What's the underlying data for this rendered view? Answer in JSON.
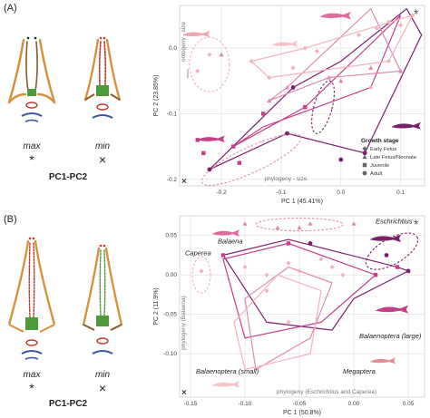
{
  "panels": [
    {
      "letter": "(A)",
      "labels": {
        "max": "max",
        "min": "min",
        "max_symbol": "*",
        "min_symbol": "×",
        "pc_pair": "PC1-PC2"
      }
    },
    {
      "letter": "(B)",
      "labels": {
        "max": "max",
        "min": "min",
        "max_symbol": "*",
        "min_symbol": "×",
        "pc_pair": "PC1-PC2"
      }
    }
  ],
  "colors": {
    "early_fetus": "#f3b3bb",
    "late_fetus": "#e08ab3",
    "juvenile": "#c73e8a",
    "adult": "#7a1f6c",
    "grid": "#e4e4e4",
    "skull_orange": "#d6903a",
    "skull_green": "#4d9a3a",
    "skull_blue": "#3b55a8",
    "skull_red": "#c0392b"
  },
  "chart_data": [
    {
      "type": "scatter",
      "xlabel": "PC 1 (45.41%)",
      "ylabel": "PC 2 (23.85%)",
      "xlim": [
        -0.27,
        0.14
      ],
      "ylim": [
        -0.21,
        0.065
      ],
      "x_ticks": [
        "-0.2",
        "-0.1",
        "0.0",
        "0.1"
      ],
      "x_tick_values": [
        -0.2,
        -0.1,
        0.0,
        0.1
      ],
      "y_ticks": [
        "0.0",
        "-0.1",
        "-0.2"
      ],
      "y_tick_values": [
        0.0,
        -0.1,
        -0.2
      ],
      "grid": true,
      "legend_title": "Growth stage",
      "legend": [
        "Early Fetus",
        "Late Fetus/Neonate",
        "Juvenile",
        "Adult"
      ],
      "legend_position": "bottom-right",
      "annotations": {
        "ontogeny": "ontogeny - size",
        "phylogeny": "phylogeny - size",
        "max_marker": "*",
        "min_marker": "×"
      },
      "series": [
        {
          "name": "Early Fetus",
          "x": [
            -0.24,
            -0.22,
            -0.15,
            -0.12,
            -0.08,
            -0.06,
            -0.04,
            0.03,
            0.06,
            0.08,
            0.1,
            0.12,
            0.08,
            0.05
          ],
          "y": [
            -0.035,
            -0.01,
            -0.02,
            -0.045,
            -0.03,
            0.0,
            -0.005,
            0.02,
            0.03,
            0.04,
            0.035,
            0.05,
            -0.02,
            -0.06
          ]
        },
        {
          "name": "Late Fetus/Neonate",
          "x": [
            -0.2,
            -0.12,
            -0.09,
            -0.02,
            0.0,
            0.05,
            0.1
          ],
          "y": [
            -0.01,
            -0.08,
            -0.06,
            -0.045,
            -0.05,
            -0.03,
            -0.035
          ]
        },
        {
          "name": "Juvenile",
          "x": [
            -0.24,
            -0.23,
            -0.18,
            -0.17,
            -0.13,
            -0.06
          ],
          "y": [
            -0.14,
            -0.16,
            -0.15,
            -0.175,
            -0.1,
            -0.09
          ]
        },
        {
          "name": "Adult",
          "x": [
            -0.22,
            -0.09,
            -0.08,
            0.0,
            0.04
          ],
          "y": [
            -0.185,
            -0.13,
            -0.06,
            -0.17,
            -0.16
          ]
        }
      ]
    },
    {
      "type": "scatter",
      "xlabel": "PC 1 (50.8%)",
      "ylabel": "PC 2 (11.9%)",
      "xlim": [
        -0.16,
        0.065
      ],
      "ylim": [
        -0.155,
        0.075
      ],
      "x_ticks": [
        "-0.15",
        "-0.10",
        "-0.05",
        "0.00",
        "0.05"
      ],
      "x_tick_values": [
        -0.15,
        -0.1,
        -0.05,
        0.0,
        0.05
      ],
      "y_ticks": [
        "0.05",
        "0.00",
        "-0.05",
        "-0.10"
      ],
      "y_tick_values": [
        0.05,
        0.0,
        -0.05,
        -0.1
      ],
      "grid": true,
      "annotations": {
        "phylogeny_y": "phylogeny (Balaena)",
        "phylogeny_x": "phylogeny (Eschrichtius and Caperea)",
        "max_marker": "*",
        "min_marker": "×"
      },
      "species_labels": [
        "Balaena",
        "Eschrichtius",
        "Caperea",
        "Balaenoptera (large)",
        "Megaptera",
        "Balaenoptera (small)"
      ],
      "series": [
        {
          "name": "Early Fetus",
          "x": [
            -0.14,
            -0.1,
            -0.08,
            -0.06,
            -0.05,
            -0.03,
            -0.02,
            -0.01,
            -0.06,
            -0.08
          ],
          "y": [
            0.005,
            0.01,
            0.0,
            0.015,
            0.005,
            0.02,
            0.01,
            0.0,
            -0.06,
            -0.02
          ]
        },
        {
          "name": "Late Fetus/Neonate",
          "x": [
            -0.1,
            -0.07,
            -0.05,
            -0.04,
            0.0
          ],
          "y": [
            0.065,
            0.06,
            0.06,
            0.065,
            0.065
          ]
        },
        {
          "name": "Juvenile",
          "x": [
            -0.12,
            -0.06,
            0.02,
            0.04
          ],
          "y": [
            0.025,
            0.04,
            0.0,
            0.01
          ]
        },
        {
          "name": "Adult",
          "x": [
            -0.04,
            0.03,
            0.05
          ],
          "y": [
            0.04,
            0.025,
            0.005
          ]
        }
      ]
    }
  ]
}
